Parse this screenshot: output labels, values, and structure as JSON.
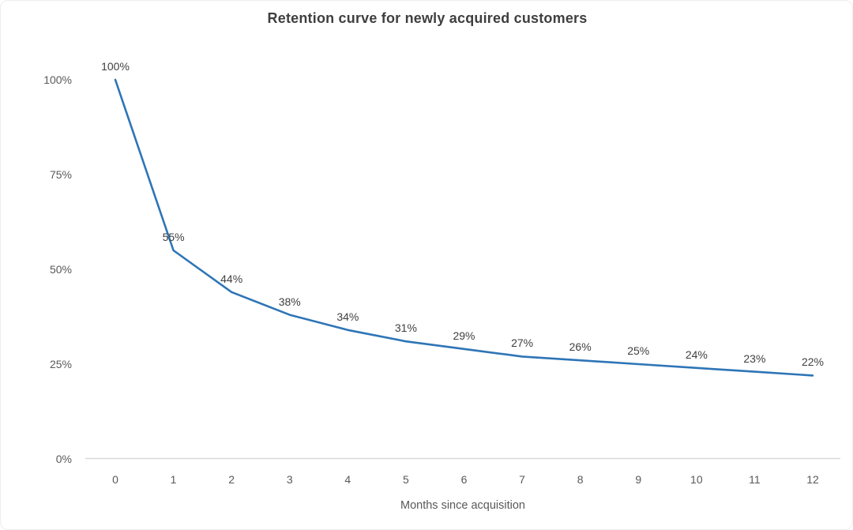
{
  "chart_data": {
    "type": "line",
    "title": "Retention curve for newly acquired customers",
    "xlabel": "Months since acquisition",
    "ylabel": "",
    "x": [
      0,
      1,
      2,
      3,
      4,
      5,
      6,
      7,
      8,
      9,
      10,
      11,
      12
    ],
    "x_tick_labels": [
      "0",
      "1",
      "2",
      "3",
      "4",
      "5",
      "6",
      "7",
      "8",
      "9",
      "10",
      "11",
      "12"
    ],
    "values": [
      100,
      55,
      44,
      38,
      34,
      31,
      29,
      27,
      26,
      25,
      24,
      23,
      22
    ],
    "point_labels": [
      "100%",
      "55%",
      "44%",
      "38%",
      "34%",
      "31%",
      "29%",
      "27%",
      "26%",
      "25%",
      "24%",
      "23%",
      "22%"
    ],
    "y_tick_values": [
      0,
      25,
      50,
      75,
      100
    ],
    "y_tick_labels": [
      "0%",
      "25%",
      "50%",
      "75%",
      "100%"
    ],
    "ylim": [
      0,
      100
    ],
    "grid": false,
    "legend": false,
    "line_color": "#2e75b6",
    "axis_color": "#d9d9d9",
    "tick_text_color": "#595959",
    "data_label_color": "#404040",
    "title_color": "#3f3f3f"
  }
}
